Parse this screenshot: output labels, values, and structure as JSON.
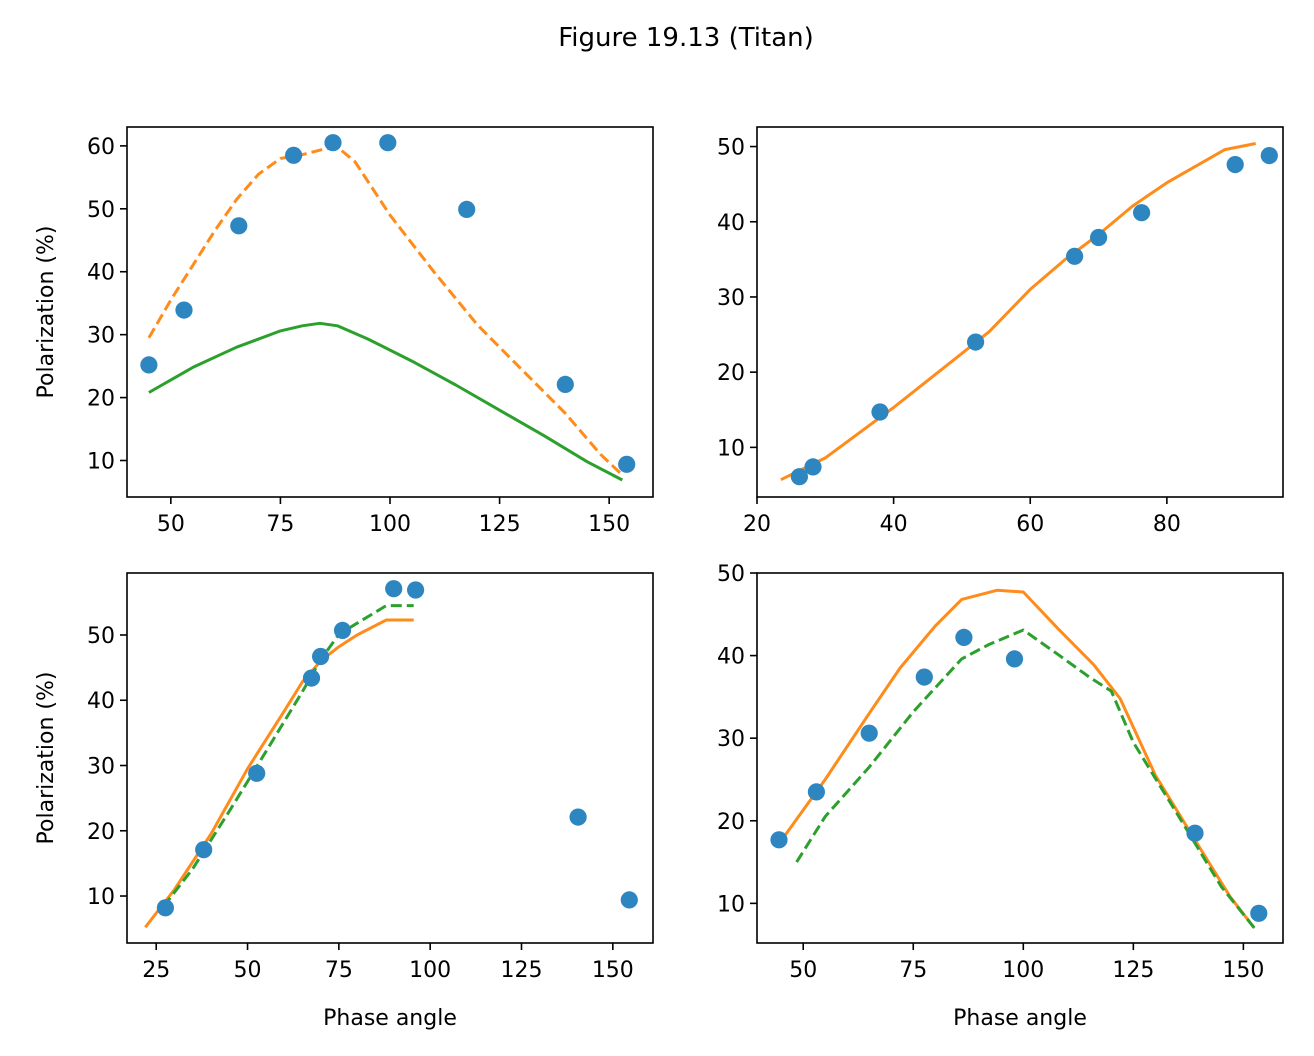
{
  "figure_title": "Figure 19.13 (Titan)",
  "colors": {
    "points": "#2e86c1",
    "orange": "#ff8c1a",
    "green": "#2ca02c",
    "axes": "#000000"
  },
  "chart_data": [
    {
      "type": "scatter",
      "position": "top-left",
      "title": "",
      "xlabel": "",
      "ylabel": "Polarization (%)",
      "xlim": [
        40,
        160
      ],
      "ylim": [
        4.2,
        63
      ],
      "xticks": [
        50,
        75,
        100,
        125,
        150
      ],
      "yticks": [
        10,
        20,
        30,
        40,
        50,
        60
      ],
      "points": [
        [
          45,
          25.2
        ],
        [
          53,
          33.9
        ],
        [
          65.5,
          47.3
        ],
        [
          78,
          58.5
        ],
        [
          87,
          60.5
        ],
        [
          99.5,
          60.5
        ],
        [
          117.5,
          49.9
        ],
        [
          140,
          22.1
        ],
        [
          154,
          9.4
        ]
      ],
      "lines": [
        {
          "style": "dashed",
          "color": "#ff8c1a",
          "x": [
            45,
            50,
            55,
            60,
            65,
            70,
            75,
            80,
            85,
            88,
            92,
            100,
            110,
            120,
            130,
            140,
            148,
            153
          ],
          "y": [
            29.5,
            35.5,
            41,
            46.5,
            51.5,
            55.5,
            58,
            58.6,
            59.5,
            59.8,
            57.5,
            49,
            40,
            31.5,
            24.5,
            17.5,
            11,
            7.7
          ]
        },
        {
          "style": "solid",
          "color": "#2ca02c",
          "x": [
            45,
            55,
            65,
            75,
            80,
            84,
            88,
            95,
            105,
            115,
            125,
            135,
            145,
            153
          ],
          "y": [
            20.8,
            24.8,
            28,
            30.6,
            31.4,
            31.8,
            31.4,
            29.3,
            25.8,
            22,
            18,
            14,
            9.8,
            6.9
          ]
        }
      ]
    },
    {
      "type": "scatter",
      "position": "top-right",
      "title": "",
      "xlabel": "",
      "ylabel": "",
      "xlim": [
        20,
        97
      ],
      "ylim": [
        3.4,
        52.6
      ],
      "xticks": [
        20,
        40,
        60,
        80
      ],
      "yticks": [
        10,
        20,
        30,
        40,
        50
      ],
      "points": [
        [
          26.2,
          6.1
        ],
        [
          28.2,
          7.4
        ],
        [
          38,
          14.7
        ],
        [
          52,
          24
        ],
        [
          66.5,
          35.4
        ],
        [
          70,
          37.9
        ],
        [
          76.3,
          41.2
        ],
        [
          90,
          47.6
        ],
        [
          95,
          48.8
        ]
      ],
      "lines": [
        {
          "style": "solid",
          "color": "#ff8c1a",
          "x": [
            23.5,
            30,
            40,
            50,
            54,
            60,
            65,
            70,
            75,
            80,
            88.5,
            93
          ],
          "y": [
            5.7,
            8.6,
            15.3,
            22.5,
            25.4,
            31,
            34.9,
            38.3,
            42.1,
            45.2,
            49.6,
            50.4
          ]
        }
      ]
    },
    {
      "type": "scatter",
      "position": "bottom-left",
      "title": "",
      "xlabel": "Phase angle",
      "ylabel": "Polarization (%)",
      "xlim": [
        17,
        161
      ],
      "ylim": [
        2.8,
        59.5
      ],
      "xticks": [
        25,
        50,
        75,
        100,
        125,
        150
      ],
      "yticks": [
        10,
        20,
        30,
        40,
        50
      ],
      "points": [
        [
          27.5,
          8.2
        ],
        [
          38,
          17.1
        ],
        [
          52.5,
          28.8
        ],
        [
          67.5,
          43.4
        ],
        [
          70,
          46.7
        ],
        [
          76,
          50.7
        ],
        [
          90,
          57.1
        ],
        [
          96,
          56.9
        ],
        [
          140.5,
          22.1
        ],
        [
          154.5,
          9.4
        ]
      ],
      "lines": [
        {
          "style": "solid",
          "color": "#ff8c1a",
          "x": [
            22,
            30,
            40,
            50,
            60,
            65,
            70,
            75,
            80,
            88,
            95.5
          ],
          "y": [
            5.2,
            11,
            19.5,
            29.5,
            38.3,
            42.8,
            46,
            48.2,
            50,
            52.3,
            52.3
          ]
        },
        {
          "style": "dashed",
          "color": "#2ca02c",
          "x": [
            27,
            35,
            45,
            55,
            65,
            70,
            75,
            80,
            88,
            95.5
          ],
          "y": [
            8.4,
            14.2,
            23,
            32.1,
            41.3,
            46.2,
            50.1,
            51.8,
            54.5,
            54.5
          ]
        }
      ]
    },
    {
      "type": "scatter",
      "position": "bottom-right",
      "title": "",
      "xlabel": "Phase angle",
      "ylabel": "",
      "xlim": [
        39.5,
        159
      ],
      "ylim": [
        5.2,
        50
      ],
      "xticks": [
        50,
        75,
        100,
        125,
        150
      ],
      "yticks": [
        10,
        20,
        30,
        40,
        50
      ],
      "points": [
        [
          44.5,
          17.7
        ],
        [
          53,
          23.5
        ],
        [
          65,
          30.6
        ],
        [
          77.5,
          37.4
        ],
        [
          86.5,
          42.2
        ],
        [
          98,
          39.6
        ],
        [
          139,
          18.5
        ],
        [
          153.5,
          8.8
        ]
      ],
      "lines": [
        {
          "style": "solid",
          "color": "#ff8c1a",
          "x": [
            45,
            55,
            65,
            72,
            80,
            86,
            94,
            100,
            108,
            116,
            122,
            130,
            140,
            147,
            152.5
          ],
          "y": [
            17.6,
            25,
            33,
            38.5,
            43.6,
            46.8,
            47.9,
            47.7,
            43.2,
            38.9,
            34.8,
            25.5,
            16.8,
            10.8,
            7
          ]
        },
        {
          "style": "dashed",
          "color": "#2ca02c",
          "x": [
            48.5,
            55,
            65,
            75,
            86,
            92,
            100,
            108,
            115,
            120,
            125,
            135,
            145,
            152.5
          ],
          "y": [
            15,
            20.5,
            26.5,
            33.2,
            39.6,
            41.3,
            43.1,
            40.1,
            37.4,
            35.7,
            29.5,
            20.8,
            12,
            7
          ]
        }
      ]
    }
  ]
}
